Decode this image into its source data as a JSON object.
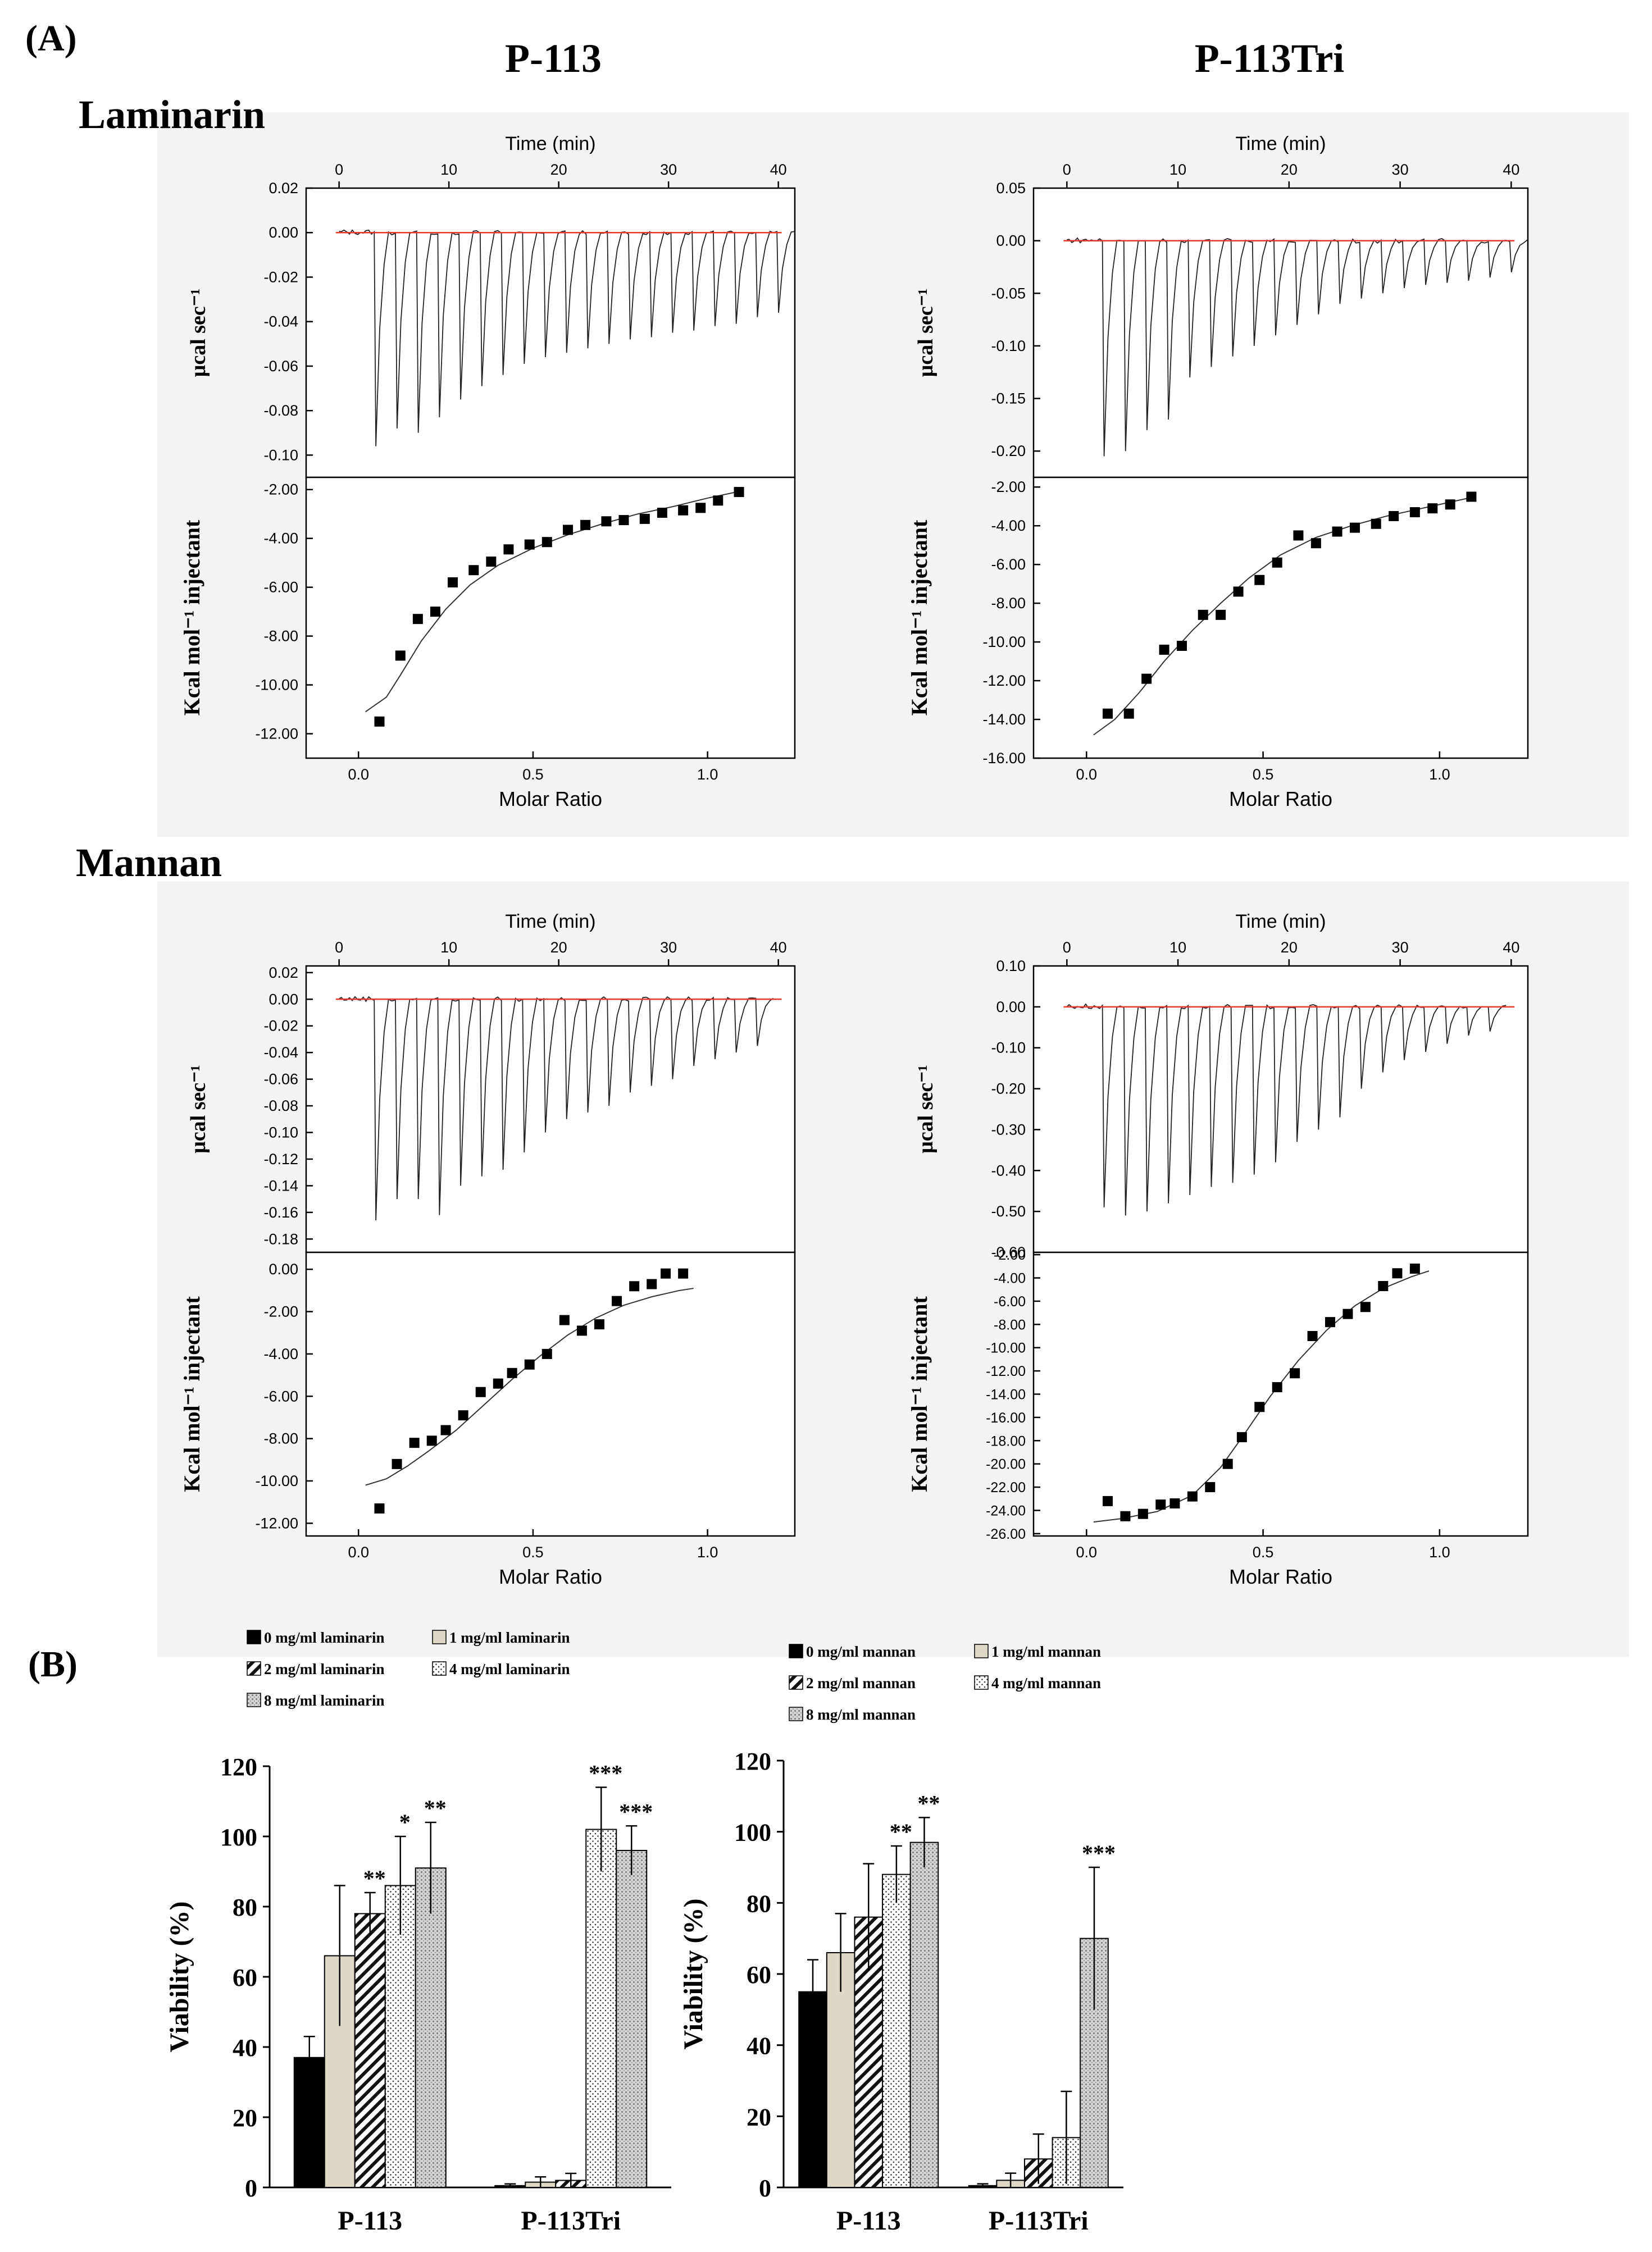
{
  "labels": {
    "panel_a": "(A)",
    "panel_b": "(B)",
    "col_p113": "P-113",
    "col_p113tri": "P-113Tri",
    "row_laminarin": "Laminarin",
    "row_mannan": "Mannan"
  },
  "colors": {
    "baseline": "#e8392e",
    "bar_black": "#000000",
    "bar_beige": "#ddd8c5"
  },
  "chart_data": [
    {
      "id": "itc-laminarin-p113",
      "type": "line",
      "title": "P-113 / Laminarin",
      "top": {
        "xlabel": "Time (min)",
        "ylabel": "μcal sec⁻¹",
        "xlim": [
          -3,
          41.5
        ],
        "ylim": [
          -0.11,
          0.02
        ],
        "xticks": [
          0,
          10,
          20,
          30,
          40
        ],
        "yticks": [
          0.02,
          0.0,
          -0.02,
          -0.04,
          -0.06,
          -0.08,
          -0.1
        ],
        "yticklabels": [
          "0.02",
          "0.00",
          "-0.02",
          "-0.04",
          "-0.06",
          "-0.08",
          "-0.10"
        ],
        "injection_start": 3.2,
        "injection_interval": 1.93,
        "peaks": [
          -0.096,
          -0.088,
          -0.09,
          -0.083,
          -0.075,
          -0.069,
          -0.064,
          -0.059,
          -0.056,
          -0.054,
          -0.052,
          -0.05,
          -0.048,
          -0.047,
          -0.045,
          -0.044,
          -0.042,
          -0.041,
          -0.038,
          -0.036
        ]
      },
      "bottom": {
        "xlabel": "Molar Ratio",
        "ylabel": "Kcal mol⁻¹ injectant",
        "xlim": [
          -0.15,
          1.25
        ],
        "ylim": [
          -13,
          -1.5
        ],
        "xticks": [
          0.0,
          0.5,
          1.0
        ],
        "xticklabels": [
          "0.0",
          "0.5",
          "1.0"
        ],
        "yticks": [
          -2,
          -4,
          -6,
          -8,
          -10,
          -12
        ],
        "yticklabels": [
          "-2.00",
          "-4.00",
          "-6.00",
          "-8.00",
          "-10.00",
          "-12.00"
        ],
        "points": [
          [
            0.06,
            -11.5
          ],
          [
            0.12,
            -8.8
          ],
          [
            0.17,
            -7.3
          ],
          [
            0.22,
            -7.0
          ],
          [
            0.27,
            -5.8
          ],
          [
            0.33,
            -5.3
          ],
          [
            0.38,
            -4.95
          ],
          [
            0.43,
            -4.45
          ],
          [
            0.49,
            -4.25
          ],
          [
            0.54,
            -4.15
          ],
          [
            0.6,
            -3.65
          ],
          [
            0.65,
            -3.45
          ],
          [
            0.71,
            -3.3
          ],
          [
            0.76,
            -3.25
          ],
          [
            0.82,
            -3.2
          ],
          [
            0.87,
            -2.95
          ],
          [
            0.93,
            -2.85
          ],
          [
            0.98,
            -2.75
          ],
          [
            1.03,
            -2.45
          ],
          [
            1.09,
            -2.1
          ]
        ],
        "fit": [
          [
            0.02,
            -11.1
          ],
          [
            0.08,
            -10.5
          ],
          [
            0.12,
            -9.6
          ],
          [
            0.18,
            -8.2
          ],
          [
            0.25,
            -6.9
          ],
          [
            0.32,
            -5.9
          ],
          [
            0.4,
            -5.1
          ],
          [
            0.5,
            -4.4
          ],
          [
            0.6,
            -3.85
          ],
          [
            0.7,
            -3.4
          ],
          [
            0.8,
            -3.0
          ],
          [
            0.9,
            -2.7
          ],
          [
            1.0,
            -2.35
          ],
          [
            1.1,
            -2.05
          ]
        ]
      }
    },
    {
      "id": "itc-laminarin-p113tri",
      "type": "line",
      "title": "P-113Tri / Laminarin",
      "top": {
        "xlabel": "Time (min)",
        "ylabel": "μcal sec⁻¹",
        "xlim": [
          -3,
          41.5
        ],
        "ylim": [
          -0.225,
          0.05
        ],
        "xticks": [
          0,
          10,
          20,
          30,
          40
        ],
        "yticks": [
          0.05,
          0.0,
          -0.05,
          -0.1,
          -0.15,
          -0.2
        ],
        "yticklabels": [
          "0.05",
          "0.00",
          "-0.05",
          "-0.10",
          "-0.15",
          "-0.20"
        ],
        "injection_start": 3.2,
        "injection_interval": 1.93,
        "peaks": [
          -0.205,
          -0.2,
          -0.18,
          -0.17,
          -0.13,
          -0.12,
          -0.11,
          -0.1,
          -0.09,
          -0.08,
          -0.07,
          -0.06,
          -0.055,
          -0.05,
          -0.045,
          -0.042,
          -0.04,
          -0.038,
          -0.035,
          -0.03
        ]
      },
      "bottom": {
        "xlabel": "Molar Ratio",
        "ylabel": "Kcal mol⁻¹ injectant",
        "xlim": [
          -0.15,
          1.25
        ],
        "ylim": [
          -16,
          -1.5
        ],
        "xticks": [
          0.0,
          0.5,
          1.0
        ],
        "xticklabels": [
          "0.0",
          "0.5",
          "1.0"
        ],
        "yticks": [
          -2,
          -4,
          -6,
          -8,
          -10,
          -12,
          -14,
          -16
        ],
        "yticklabels": [
          "-2.00",
          "-4.00",
          "-6.00",
          "-8.00",
          "-10.00",
          "-12.00",
          "-14.00",
          "-16.00"
        ],
        "points": [
          [
            0.06,
            -13.7
          ],
          [
            0.12,
            -13.7
          ],
          [
            0.17,
            -11.9
          ],
          [
            0.22,
            -10.4
          ],
          [
            0.27,
            -10.2
          ],
          [
            0.33,
            -8.6
          ],
          [
            0.38,
            -8.6
          ],
          [
            0.43,
            -7.4
          ],
          [
            0.49,
            -6.8
          ],
          [
            0.54,
            -5.9
          ],
          [
            0.6,
            -4.5
          ],
          [
            0.65,
            -4.9
          ],
          [
            0.71,
            -4.3
          ],
          [
            0.76,
            -4.1
          ],
          [
            0.82,
            -3.9
          ],
          [
            0.87,
            -3.5
          ],
          [
            0.93,
            -3.3
          ],
          [
            0.98,
            -3.1
          ],
          [
            1.03,
            -2.9
          ],
          [
            1.09,
            -2.5
          ]
        ],
        "fit": [
          [
            0.02,
            -14.8
          ],
          [
            0.08,
            -14.0
          ],
          [
            0.15,
            -12.6
          ],
          [
            0.22,
            -11.0
          ],
          [
            0.3,
            -9.4
          ],
          [
            0.38,
            -8.0
          ],
          [
            0.46,
            -6.7
          ],
          [
            0.55,
            -5.5
          ],
          [
            0.65,
            -4.6
          ],
          [
            0.75,
            -4.0
          ],
          [
            0.85,
            -3.5
          ],
          [
            0.95,
            -3.1
          ],
          [
            1.05,
            -2.7
          ],
          [
            1.1,
            -2.5
          ]
        ]
      }
    },
    {
      "id": "itc-mannan-p113",
      "type": "line",
      "title": "P-113 / Mannan",
      "top": {
        "xlabel": "Time (min)",
        "ylabel": "μcal sec⁻¹",
        "xlim": [
          -3,
          41.5
        ],
        "ylim": [
          -0.19,
          0.025
        ],
        "xticks": [
          0,
          10,
          20,
          30,
          40
        ],
        "yticks": [
          0.02,
          0.0,
          -0.02,
          -0.04,
          -0.06,
          -0.08,
          -0.1,
          -0.12,
          -0.14,
          -0.16,
          -0.18
        ],
        "yticklabels": [
          "0.02",
          "0.00",
          "-0.02",
          "-0.04",
          "-0.06",
          "-0.08",
          "-0.10",
          "-0.12",
          "-0.14",
          "-0.16",
          "-0.18"
        ],
        "injection_start": 3.2,
        "injection_interval": 1.93,
        "peaks": [
          -0.166,
          -0.15,
          -0.15,
          -0.162,
          -0.14,
          -0.133,
          -0.128,
          -0.115,
          -0.1,
          -0.09,
          -0.085,
          -0.08,
          -0.07,
          -0.065,
          -0.06,
          -0.05,
          -0.045,
          -0.04,
          -0.035
        ]
      },
      "bottom": {
        "xlabel": "Molar Ratio",
        "ylabel": "Kcal mol⁻¹ injectant",
        "xlim": [
          -0.15,
          1.25
        ],
        "ylim": [
          -12.6,
          0.8
        ],
        "xticks": [
          0.0,
          0.5,
          1.0
        ],
        "xticklabels": [
          "0.0",
          "0.5",
          "1.0"
        ],
        "yticks": [
          0,
          -2,
          -4,
          -6,
          -8,
          -10,
          -12
        ],
        "yticklabels": [
          "0.00",
          "-2.00",
          "-4.00",
          "-6.00",
          "-8.00",
          "-10.00",
          "-12.00"
        ],
        "points": [
          [
            0.06,
            -11.3
          ],
          [
            0.11,
            -9.2
          ],
          [
            0.16,
            -8.2
          ],
          [
            0.21,
            -8.1
          ],
          [
            0.25,
            -7.6
          ],
          [
            0.3,
            -6.9
          ],
          [
            0.35,
            -5.8
          ],
          [
            0.4,
            -5.4
          ],
          [
            0.44,
            -4.9
          ],
          [
            0.49,
            -4.5
          ],
          [
            0.54,
            -4.0
          ],
          [
            0.59,
            -2.4
          ],
          [
            0.64,
            -2.9
          ],
          [
            0.69,
            -2.6
          ],
          [
            0.74,
            -1.5
          ],
          [
            0.79,
            -0.8
          ],
          [
            0.84,
            -0.7
          ],
          [
            0.88,
            -0.2
          ],
          [
            0.93,
            -0.2
          ]
        ],
        "fit": [
          [
            0.02,
            -10.2
          ],
          [
            0.08,
            -9.9
          ],
          [
            0.14,
            -9.3
          ],
          [
            0.2,
            -8.6
          ],
          [
            0.28,
            -7.6
          ],
          [
            0.36,
            -6.4
          ],
          [
            0.44,
            -5.2
          ],
          [
            0.52,
            -4.1
          ],
          [
            0.6,
            -3.1
          ],
          [
            0.68,
            -2.3
          ],
          [
            0.76,
            -1.7
          ],
          [
            0.84,
            -1.3
          ],
          [
            0.92,
            -1.0
          ],
          [
            0.96,
            -0.9
          ]
        ]
      }
    },
    {
      "id": "itc-mannan-p113tri",
      "type": "line",
      "title": "P-113Tri / Mannan",
      "top": {
        "xlabel": "Time (min)",
        "ylabel": "μcal sec⁻¹",
        "xlim": [
          -3,
          41.5
        ],
        "ylim": [
          -0.6,
          0.1
        ],
        "xticks": [
          0,
          10,
          20,
          30,
          40
        ],
        "yticks": [
          0.1,
          0.0,
          -0.1,
          -0.2,
          -0.3,
          -0.4,
          -0.5,
          -0.6
        ],
        "yticklabels": [
          "0.10",
          "0.00",
          "-0.10",
          "-0.20",
          "-0.30",
          "-0.40",
          "-0.50",
          "-0.60"
        ],
        "injection_start": 3.2,
        "injection_interval": 1.93,
        "peaks": [
          -0.49,
          -0.51,
          -0.5,
          -0.48,
          -0.46,
          -0.44,
          -0.43,
          -0.41,
          -0.38,
          -0.33,
          -0.3,
          -0.27,
          -0.2,
          -0.16,
          -0.13,
          -0.11,
          -0.09,
          -0.07,
          -0.06
        ]
      },
      "bottom": {
        "xlabel": "Molar Ratio",
        "ylabel": "Kcal mol⁻¹ injectant",
        "xlim": [
          -0.15,
          1.25
        ],
        "ylim": [
          -26.2,
          -1.8
        ],
        "xticks": [
          0.0,
          0.5,
          1.0
        ],
        "xticklabels": [
          "0.0",
          "0.5",
          "1.0"
        ],
        "yticks": [
          -2,
          -4,
          -6,
          -8,
          -10,
          -12,
          -14,
          -16,
          -18,
          -20,
          -22,
          -24,
          -26
        ],
        "yticklabels": [
          "-2.00",
          "-4.00",
          "-6.00",
          "-8.00",
          "-10.00",
          "-12.00",
          "-14.00",
          "-16.00",
          "-18.00",
          "-20.00",
          "-22.00",
          "-24.00",
          "-26.00"
        ],
        "points": [
          [
            0.06,
            -23.2
          ],
          [
            0.11,
            -24.5
          ],
          [
            0.16,
            -24.3
          ],
          [
            0.21,
            -23.5
          ],
          [
            0.25,
            -23.4
          ],
          [
            0.3,
            -22.8
          ],
          [
            0.35,
            -22.0
          ],
          [
            0.4,
            -20.0
          ],
          [
            0.44,
            -17.7
          ],
          [
            0.49,
            -15.1
          ],
          [
            0.54,
            -13.4
          ],
          [
            0.59,
            -12.2
          ],
          [
            0.64,
            -9.0
          ],
          [
            0.69,
            -7.8
          ],
          [
            0.74,
            -7.1
          ],
          [
            0.79,
            -6.5
          ],
          [
            0.84,
            -4.7
          ],
          [
            0.88,
            -3.6
          ],
          [
            0.93,
            -3.2
          ]
        ],
        "fit": [
          [
            0.02,
            -25.0
          ],
          [
            0.1,
            -24.7
          ],
          [
            0.2,
            -24.1
          ],
          [
            0.3,
            -22.7
          ],
          [
            0.38,
            -20.3
          ],
          [
            0.45,
            -17.3
          ],
          [
            0.52,
            -14.2
          ],
          [
            0.6,
            -11.1
          ],
          [
            0.68,
            -8.5
          ],
          [
            0.76,
            -6.4
          ],
          [
            0.84,
            -4.9
          ],
          [
            0.92,
            -3.9
          ],
          [
            0.97,
            -3.4
          ]
        ]
      }
    },
    {
      "id": "viability-laminarin",
      "type": "bar",
      "ylabel": "Viability (%)",
      "ylim": [
        0,
        120
      ],
      "yticks": [
        0,
        20,
        40,
        60,
        80,
        100,
        120
      ],
      "categories": [
        "P-113",
        "P-113Tri"
      ],
      "series": [
        {
          "name": "0 mg/ml  laminarin",
          "values": [
            37,
            0.5
          ],
          "errors": [
            6,
            0.5
          ],
          "sig": [
            "",
            ""
          ]
        },
        {
          "name": "1 mg/ml  laminarin",
          "values": [
            66,
            1.5
          ],
          "errors": [
            20,
            1.5
          ],
          "sig": [
            "",
            ""
          ]
        },
        {
          "name": "2 mg/ml  laminarin",
          "values": [
            78,
            2
          ],
          "errors": [
            6,
            2
          ],
          "sig": [
            "**",
            ""
          ]
        },
        {
          "name": "4 mg/ml  laminarin",
          "values": [
            86,
            102
          ],
          "errors": [
            14,
            12
          ],
          "sig": [
            "*",
            "***"
          ]
        },
        {
          "name": "8 mg/ml  laminarin",
          "values": [
            91,
            96
          ],
          "errors": [
            13,
            7
          ],
          "sig": [
            "**",
            "***"
          ]
        }
      ]
    },
    {
      "id": "viability-mannan",
      "type": "bar",
      "ylabel": "Viability (%)",
      "ylim": [
        0,
        120
      ],
      "yticks": [
        0,
        20,
        40,
        60,
        80,
        100,
        120
      ],
      "categories": [
        "P-113",
        "P-113Tri"
      ],
      "series": [
        {
          "name": "0 mg/ml mannan",
          "values": [
            55,
            0.5
          ],
          "errors": [
            9,
            0.5
          ],
          "sig": [
            "",
            ""
          ]
        },
        {
          "name": "1 mg/ml mannan",
          "values": [
            66,
            2
          ],
          "errors": [
            11,
            2
          ],
          "sig": [
            "",
            ""
          ]
        },
        {
          "name": "2 mg/ml mannan",
          "values": [
            76,
            8
          ],
          "errors": [
            15,
            7
          ],
          "sig": [
            "",
            ""
          ]
        },
        {
          "name": "4 mg/ml mannan",
          "values": [
            88,
            14
          ],
          "errors": [
            8,
            13
          ],
          "sig": [
            "**",
            ""
          ]
        },
        {
          "name": "8 mg/ml mannan",
          "values": [
            97,
            70
          ],
          "errors": [
            7,
            20
          ],
          "sig": [
            "**",
            "***"
          ]
        }
      ]
    }
  ]
}
